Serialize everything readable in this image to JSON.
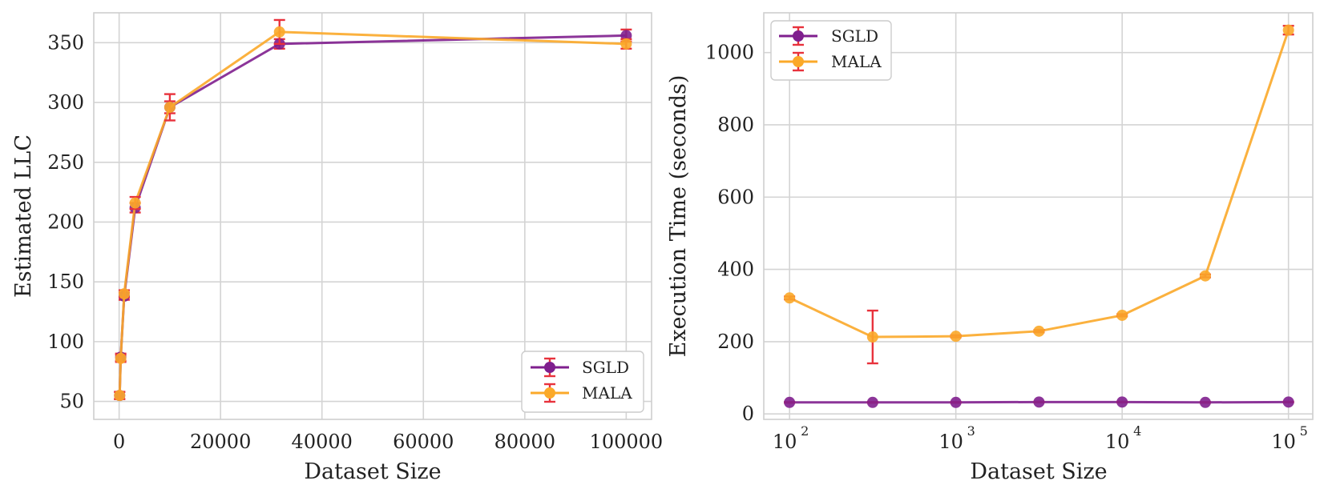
{
  "chart_data": [
    {
      "type": "line",
      "title": "",
      "xlabel": "Dataset Size",
      "ylabel": "Estimated LLC",
      "xscale": "linear",
      "xlim": [
        -5000,
        105000
      ],
      "ylim": [
        35,
        375
      ],
      "xticks": [
        0,
        20000,
        40000,
        60000,
        80000,
        100000
      ],
      "xtick_labels": [
        "0",
        "20000",
        "40000",
        "60000",
        "80000",
        "100000"
      ],
      "yticks": [
        50,
        100,
        150,
        200,
        250,
        300,
        350
      ],
      "ytick_labels": [
        "50",
        "100",
        "150",
        "200",
        "250",
        "300",
        "350"
      ],
      "grid": true,
      "legend": "bottom-right",
      "x": [
        100,
        316,
        1000,
        3162,
        10000,
        31623,
        100000
      ],
      "series": [
        {
          "name": "SGLD",
          "color": "#7f1f8e",
          "values": [
            55,
            87,
            138,
            212,
            296,
            349,
            356
          ],
          "errors": [
            3,
            3,
            3,
            4,
            5,
            4,
            5
          ]
        },
        {
          "name": "MALA",
          "color": "#fba929",
          "values": [
            55,
            86,
            140,
            216,
            296,
            359,
            349
          ],
          "errors": [
            3,
            3,
            3,
            5,
            11,
            10,
            4
          ]
        }
      ]
    },
    {
      "type": "line",
      "title": "",
      "xlabel": "Dataset Size",
      "ylabel": "Execution Time (seconds)",
      "xscale": "log",
      "xlim": [
        70,
        140000
      ],
      "ylim": [
        -15,
        1110
      ],
      "xticks": [
        100,
        1000,
        10000,
        100000
      ],
      "xtick_bases": [
        "10",
        "10",
        "10",
        "10"
      ],
      "xtick_exponents": [
        "2",
        "3",
        "4",
        "5"
      ],
      "yticks": [
        0,
        200,
        400,
        600,
        800,
        1000
      ],
      "ytick_labels": [
        "0",
        "200",
        "400",
        "600",
        "800",
        "1000"
      ],
      "grid": true,
      "legend": "top-left",
      "x": [
        100,
        316,
        1000,
        3162,
        10000,
        31623,
        100000
      ],
      "series": [
        {
          "name": "SGLD",
          "color": "#7f1f8e",
          "values": [
            32,
            32,
            32,
            33,
            33,
            32,
            33
          ],
          "errors": [
            1,
            1,
            1,
            1,
            1,
            1,
            1
          ]
        },
        {
          "name": "MALA",
          "color": "#fba929",
          "values": [
            321,
            213,
            215,
            229,
            273,
            382,
            1062
          ],
          "errors": [
            4,
            73,
            3,
            3,
            3,
            4,
            12
          ]
        }
      ]
    }
  ],
  "colors": {
    "errorbar": "#e8323c",
    "grid": "#d4d4d4"
  }
}
